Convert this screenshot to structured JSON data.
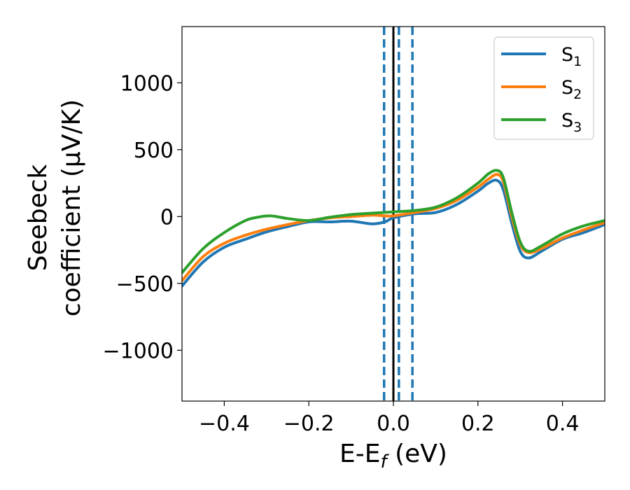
{
  "chart_data": {
    "type": "line",
    "title": "",
    "xlabel": "E-E",
    "xlabel_sub": "f",
    "xlabel_unit": " (eV)",
    "ylabel_line1": "Seebeck",
    "ylabel_line2": "coefficient  (μV/K)",
    "xlim": [
      -0.5,
      0.5
    ],
    "ylim": [
      -1380,
      1420
    ],
    "xticks": [
      -0.4,
      -0.2,
      0.0,
      0.2,
      0.4
    ],
    "xtick_labels": [
      "−0.4",
      "−0.2",
      "0.0",
      "0.2",
      "0.4"
    ],
    "yticks": [
      -1000,
      -500,
      0,
      500,
      1000
    ],
    "ytick_labels": [
      "−1000",
      "−500",
      "0",
      "500",
      "1000"
    ],
    "legend_position": "top-right",
    "reference_lines": [
      {
        "x": 0.0,
        "style": "solid",
        "color": "#000000"
      },
      {
        "x": -0.022,
        "style": "dashed",
        "color": "#1f77b4"
      },
      {
        "x": 0.013,
        "style": "dashed",
        "color": "#1f77b4"
      },
      {
        "x": 0.045,
        "style": "dashed",
        "color": "#1f77b4"
      }
    ],
    "series": [
      {
        "name": "S",
        "sub": "1",
        "color": "#1f77b4",
        "x": [
          -0.5,
          -0.45,
          -0.4,
          -0.35,
          -0.3,
          -0.25,
          -0.2,
          -0.15,
          -0.1,
          -0.05,
          -0.02,
          0.0,
          0.05,
          0.1,
          0.15,
          0.2,
          0.225,
          0.245,
          0.26,
          0.28,
          0.3,
          0.32,
          0.35,
          0.4,
          0.45,
          0.5
        ],
        "y": [
          -520,
          -340,
          -230,
          -170,
          -115,
          -75,
          -40,
          -40,
          -35,
          -55,
          -40,
          -10,
          20,
          30,
          90,
          190,
          250,
          270,
          200,
          -50,
          -260,
          -310,
          -260,
          -170,
          -120,
          -60
        ]
      },
      {
        "name": "S",
        "sub": "2",
        "color": "#ff7f0e",
        "x": [
          -0.5,
          -0.45,
          -0.4,
          -0.35,
          -0.3,
          -0.25,
          -0.2,
          -0.15,
          -0.1,
          -0.05,
          -0.02,
          0.0,
          0.05,
          0.1,
          0.15,
          0.2,
          0.225,
          0.245,
          0.26,
          0.28,
          0.3,
          0.32,
          0.35,
          0.4,
          0.45,
          0.5
        ],
        "y": [
          -480,
          -300,
          -200,
          -140,
          -95,
          -60,
          -30,
          -10,
          0,
          10,
          5,
          5,
          30,
          60,
          120,
          220,
          280,
          315,
          260,
          0,
          -210,
          -270,
          -240,
          -160,
          -100,
          -45
        ]
      },
      {
        "name": "S",
        "sub": "3",
        "color": "#2ca02c",
        "x": [
          -0.5,
          -0.45,
          -0.4,
          -0.35,
          -0.32,
          -0.29,
          -0.25,
          -0.2,
          -0.15,
          -0.1,
          -0.05,
          0.0,
          0.05,
          0.1,
          0.15,
          0.2,
          0.225,
          0.245,
          0.26,
          0.28,
          0.3,
          0.32,
          0.35,
          0.4,
          0.45,
          0.5
        ],
        "y": [
          -420,
          -240,
          -120,
          -30,
          -5,
          5,
          -15,
          -30,
          -5,
          15,
          25,
          35,
          45,
          70,
          140,
          250,
          320,
          345,
          290,
          30,
          -190,
          -260,
          -220,
          -130,
          -70,
          -30
        ]
      }
    ]
  }
}
